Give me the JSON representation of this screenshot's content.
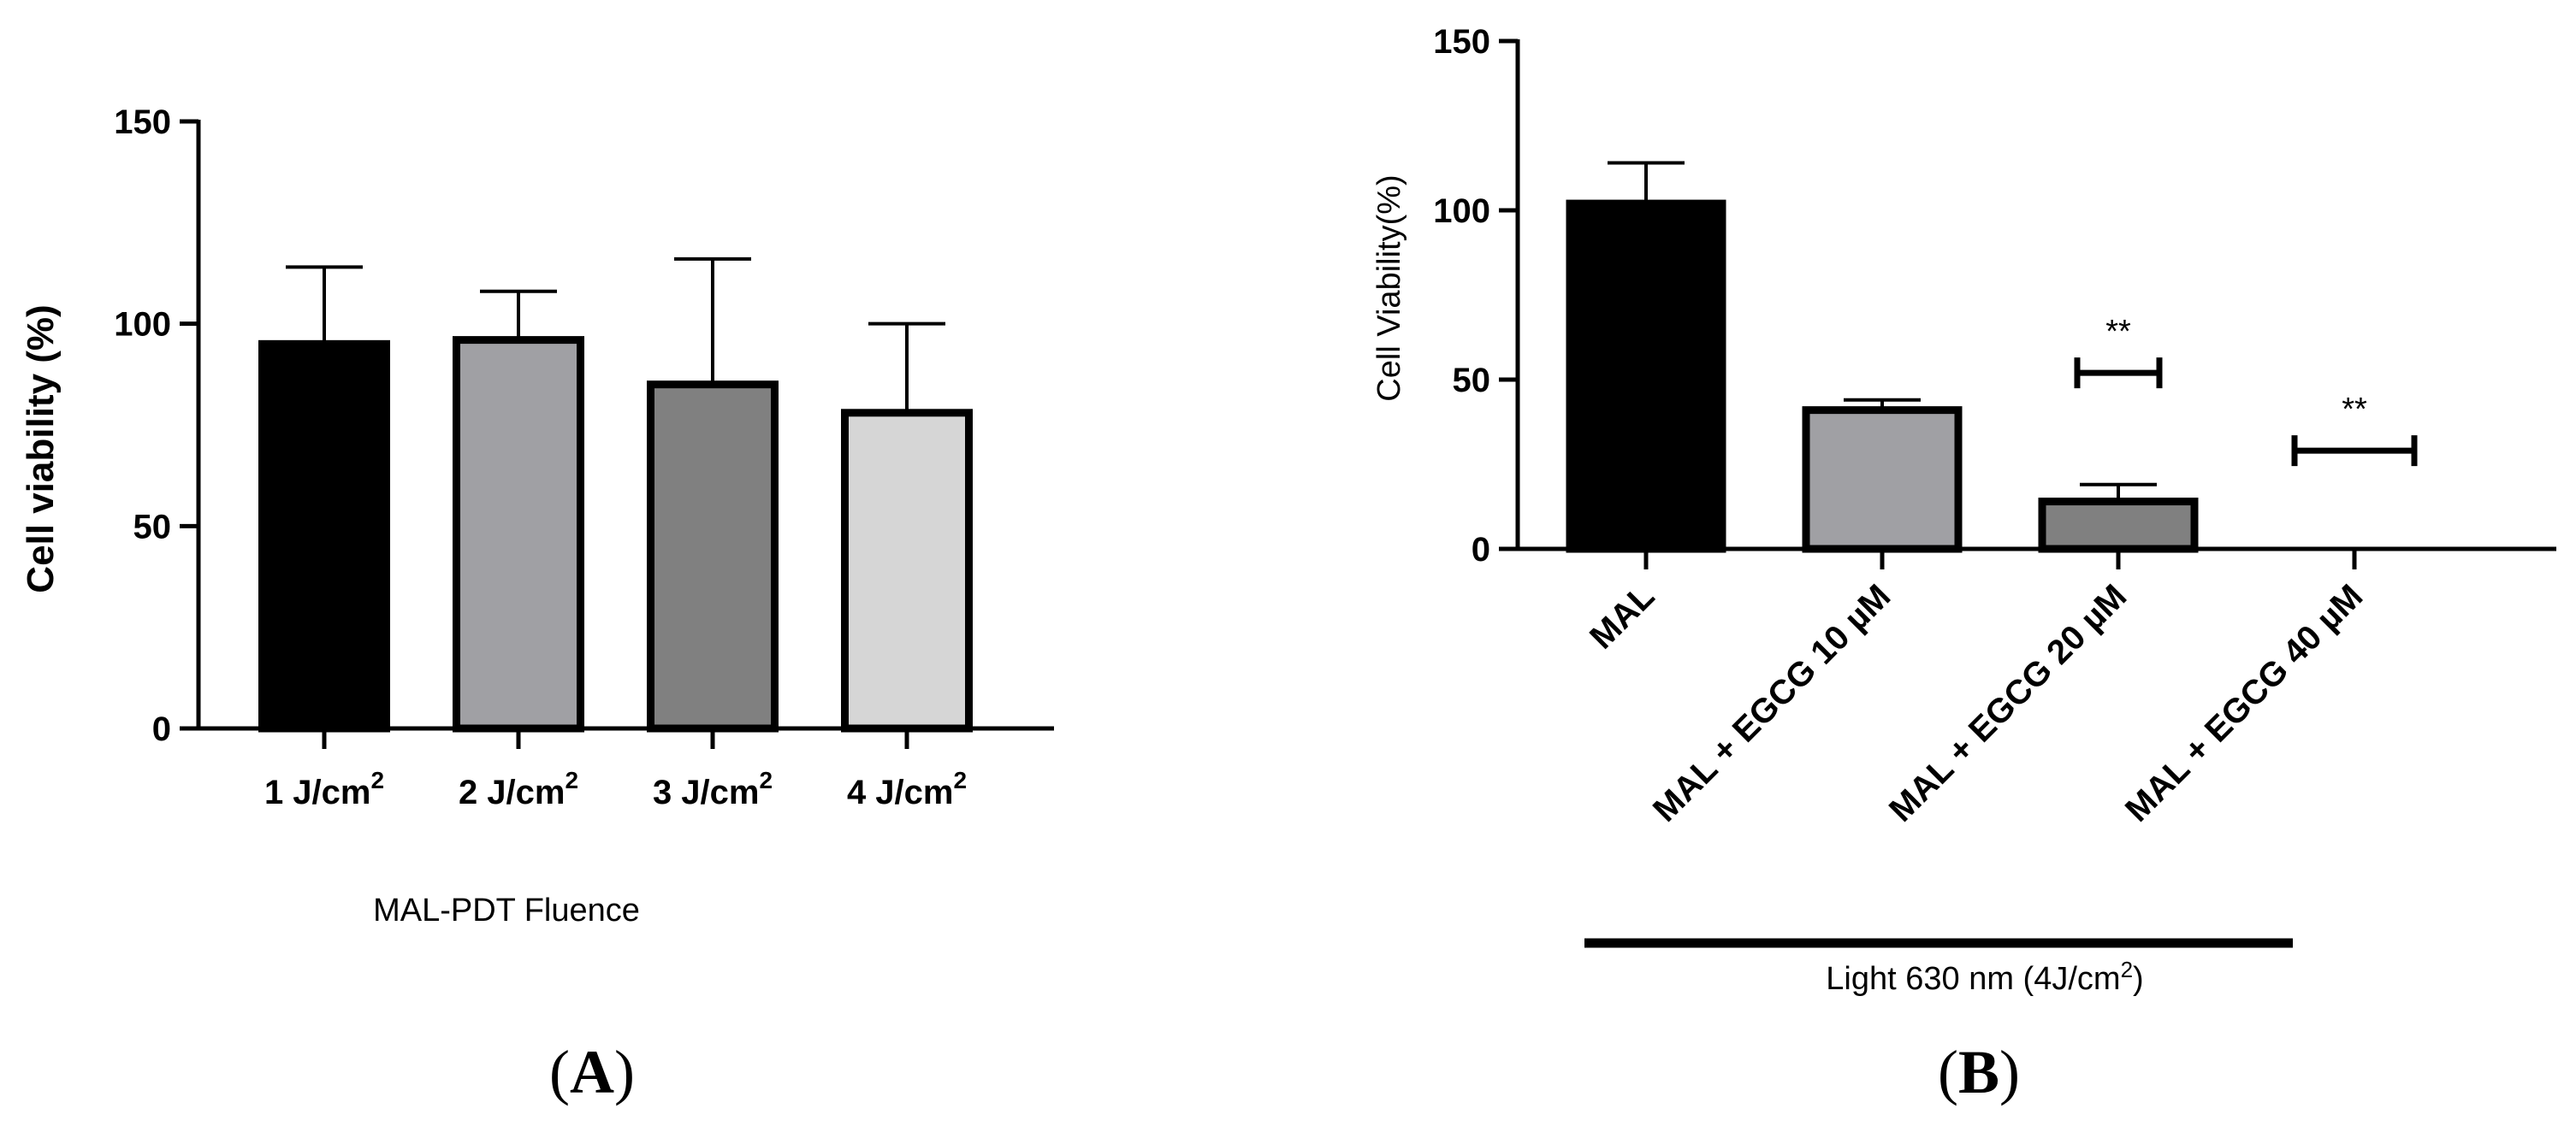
{
  "chart_data": [
    {
      "panel": "A",
      "type": "bar",
      "categories": [
        "1 J/cm2",
        "2 J/cm2",
        "3 J/cm2",
        "4 J/cm2"
      ],
      "category_labels": [
        {
          "base": "1 J/cm",
          "sup": "2"
        },
        {
          "base": "2 J/cm",
          "sup": "2"
        },
        {
          "base": "3 J/cm",
          "sup": "2"
        },
        {
          "base": "4 J/cm",
          "sup": "2"
        }
      ],
      "values": [
        95,
        96,
        85,
        78
      ],
      "errors": [
        19,
        12,
        31,
        22
      ],
      "colors": [
        "#000000",
        "#a0a0a4",
        "#808080",
        "#d6d6d6"
      ],
      "xlabel": "MAL-PDT Fluence",
      "ylabel": "Cell viability (%)",
      "ylim": [
        0,
        150
      ],
      "yticks": [
        "0",
        "50",
        "100",
        "150"
      ],
      "panel_label_open": "(",
      "panel_label_letter": "A",
      "panel_label_close": ")"
    },
    {
      "panel": "B",
      "type": "bar",
      "categories": [
        "MAL",
        "MAL + EGCG 10 µM",
        "MAL + EGCG 20 µM",
        "MAL + EGCG 40 µM"
      ],
      "values": [
        102,
        41,
        14,
        0
      ],
      "errors": [
        12,
        3,
        5,
        0
      ],
      "colors": [
        "#000000",
        "#a0a0a4",
        "#808080",
        "#d6d6d6"
      ],
      "significance": [
        null,
        null,
        "**",
        "**"
      ],
      "ylabel": "Cell Viability(%)",
      "ylim": [
        0,
        150
      ],
      "yticks": [
        "0",
        "50",
        "100",
        "150"
      ],
      "bracket_label": {
        "base": "Light 630 nm (4J/cm",
        "sup": "2",
        "end": ")"
      },
      "panel_label_open": "(",
      "panel_label_letter": "B",
      "panel_label_close": ")"
    }
  ]
}
